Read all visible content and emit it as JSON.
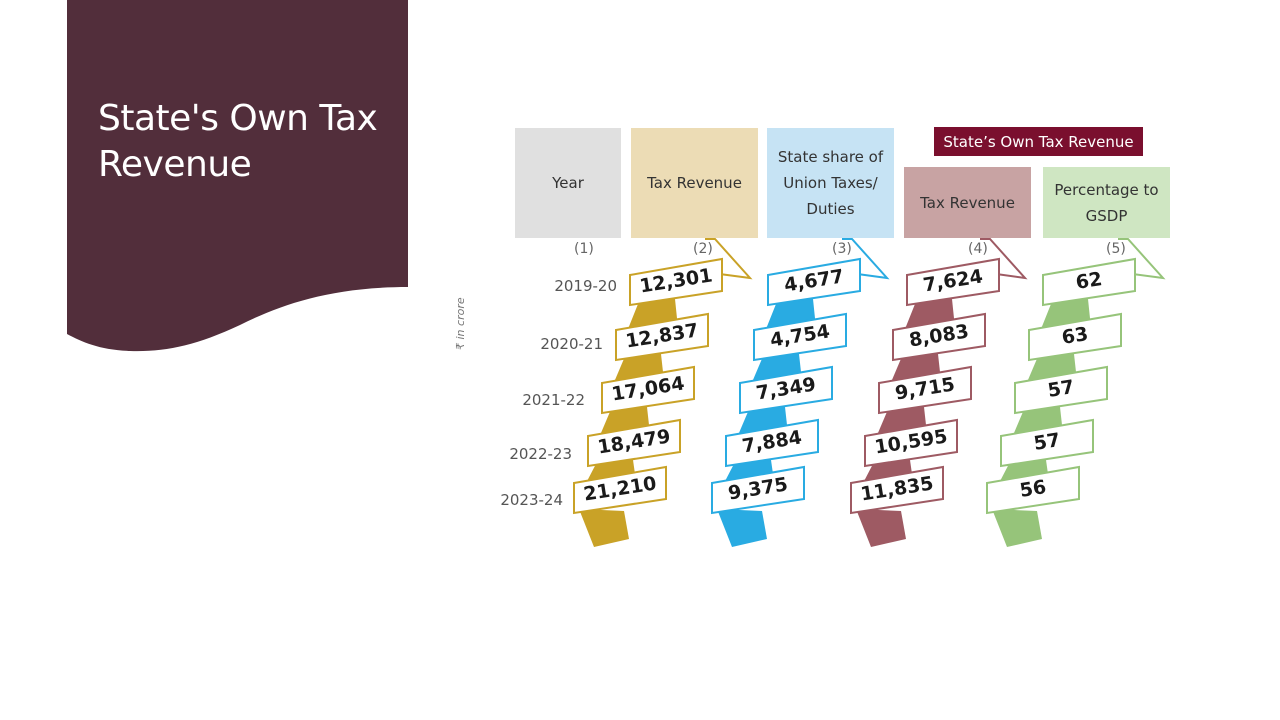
{
  "slide": {
    "title": "State's Own Tax Revenue",
    "panel_color": "#522e3b"
  },
  "infographic": {
    "group_label": "State’s Own Tax Revenue",
    "unit_label": "₹ in crore",
    "columns": [
      {
        "key": "year",
        "header": "Year",
        "number": "(1)",
        "color": "#e0e0e0"
      },
      {
        "key": "tax_revenue",
        "header": "Tax Revenue",
        "number": "(2)",
        "color": "#ecdcb5",
        "ribbon_color": "#c9a227"
      },
      {
        "key": "union_share",
        "header": "State share of Union Taxes/ Duties",
        "number": "(3)",
        "color": "#c6e3f4",
        "ribbon_color": "#29abe2"
      },
      {
        "key": "own_tax",
        "header": "Tax Revenue",
        "number": "(4)",
        "color": "#c8a3a3",
        "ribbon_color": "#9e5a63"
      },
      {
        "key": "pct_gsdp",
        "header": "Percentage to GSDP",
        "number": "(5)",
        "color": "#cfe6c2",
        "ribbon_color": "#96c47a"
      }
    ],
    "years": [
      "2019-20",
      "2020-21",
      "2021-22",
      "2022-23",
      "2023-24"
    ],
    "values": {
      "tax_revenue": [
        "12,301",
        "12,837",
        "17,064",
        "18,479",
        "21,210"
      ],
      "union_share": [
        "4,677",
        "4,754",
        "7,349",
        "7,884",
        "9,375"
      ],
      "own_tax": [
        "7,624",
        "8,083",
        "9,715",
        "10,595",
        "11,835"
      ],
      "pct_gsdp": [
        "62",
        "63",
        "57",
        "57",
        "56"
      ]
    }
  }
}
